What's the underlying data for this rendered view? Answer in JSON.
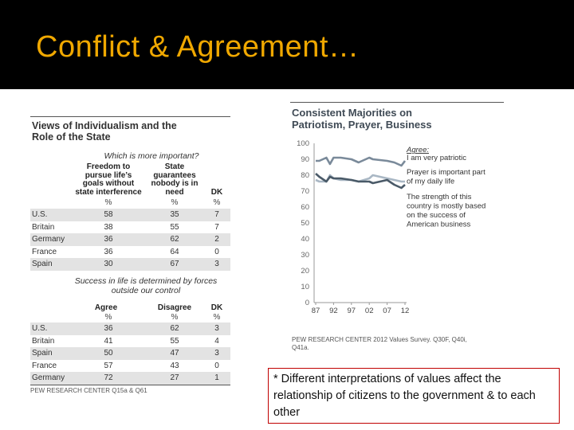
{
  "slide": {
    "title": "Conflict & Agreement…",
    "colors": {
      "title": "#f0a800",
      "background_band": "#000000",
      "note_border": "#c00000"
    }
  },
  "left_table": {
    "title_line1": "Views of Individualism and the",
    "title_line2": "Role of the State",
    "q1": {
      "question": "Which is more important?",
      "col1": [
        "Freedom to",
        "pursue life’s",
        "goals without",
        "state interference"
      ],
      "col2": [
        "State",
        "guarantees",
        "nobody is in",
        "need"
      ],
      "col3": [
        "DK"
      ],
      "pct": "%",
      "rows": [
        {
          "country": "U.S.",
          "a": "58",
          "b": "35",
          "c": "7"
        },
        {
          "country": "Britain",
          "a": "38",
          "b": "55",
          "c": "7"
        },
        {
          "country": "Germany",
          "a": "36",
          "b": "62",
          "c": "2"
        },
        {
          "country": "France",
          "a": "36",
          "b": "64",
          "c": "0"
        },
        {
          "country": "Spain",
          "a": "30",
          "b": "67",
          "c": "3"
        }
      ]
    },
    "q2": {
      "question_line1": "Success in life is determined by forces",
      "question_line2": "outside our control",
      "col1": "Agree",
      "col2": "Disagree",
      "col3": "DK",
      "pct": "%",
      "rows": [
        {
          "country": "U.S.",
          "a": "36",
          "b": "62",
          "c": "3"
        },
        {
          "country": "Britain",
          "a": "41",
          "b": "55",
          "c": "4"
        },
        {
          "country": "Spain",
          "a": "50",
          "b": "47",
          "c": "3"
        },
        {
          "country": "France",
          "a": "57",
          "b": "43",
          "c": "0"
        },
        {
          "country": "Germany",
          "a": "72",
          "b": "27",
          "c": "1"
        }
      ]
    },
    "source": "PEW RESEARCH CENTER Q15a & Q61"
  },
  "chart_data": {
    "type": "line",
    "title_line1": "Consistent Majorities on",
    "title_line2": "Patriotism, Prayer, Business",
    "x_tick_labels": [
      "87",
      "92",
      "97",
      "02",
      "07",
      "12"
    ],
    "x_ticks": [
      1987,
      1992,
      1997,
      2002,
      2007,
      2012
    ],
    "xlim": [
      1987,
      2012
    ],
    "ylim": [
      0,
      100
    ],
    "y_ticks": [
      0,
      10,
      20,
      30,
      40,
      50,
      60,
      70,
      80,
      90,
      100
    ],
    "legend_title": "Agree:",
    "series": [
      {
        "name": "I am very patriotic",
        "color": "#7a8a9a",
        "x": [
          1987,
          1988,
          1990,
          1991,
          1992,
          1994,
          1997,
          1999,
          2002,
          2003,
          2007,
          2009,
          2011,
          2012
        ],
        "y": [
          89,
          89,
          91,
          87,
          91,
          91,
          90,
          88,
          91,
          90,
          89,
          88,
          86,
          89
        ]
      },
      {
        "name": "Prayer is important part of my daily life",
        "color": "#a9b7c4",
        "x": [
          1987,
          1988,
          1990,
          1991,
          1992,
          1994,
          1997,
          1999,
          2002,
          2003,
          2007,
          2009,
          2011,
          2012
        ],
        "y": [
          77,
          76,
          76,
          80,
          78,
          77,
          77,
          76,
          78,
          80,
          78,
          77,
          76,
          76
        ]
      },
      {
        "name": "The strength of this country is mostly based on the success of American business",
        "color": "#4a5a68",
        "x": [
          1987,
          1988,
          1990,
          1991,
          1992,
          1994,
          1997,
          1999,
          2002,
          2003,
          2007,
          2009,
          2011,
          2012
        ],
        "y": [
          81,
          79,
          76,
          79,
          78,
          78,
          77,
          76,
          76,
          75,
          77,
          74,
          72,
          74
        ]
      }
    ],
    "legend_lines": {
      "s1": [
        "I am very patriotic"
      ],
      "s2": [
        "Prayer is important part",
        "of my daily life"
      ],
      "s3": [
        "The strength of this",
        "country is mostly based",
        "on the success of",
        "American business"
      ]
    },
    "source_line1": "PEW RESEARCH CENTER 2012 Values Survey. Q30F, Q40i,",
    "source_line2": "Q41a."
  },
  "note": {
    "text": "* Different interpretations of values affect the relationship of citizens to the government & to each other"
  }
}
